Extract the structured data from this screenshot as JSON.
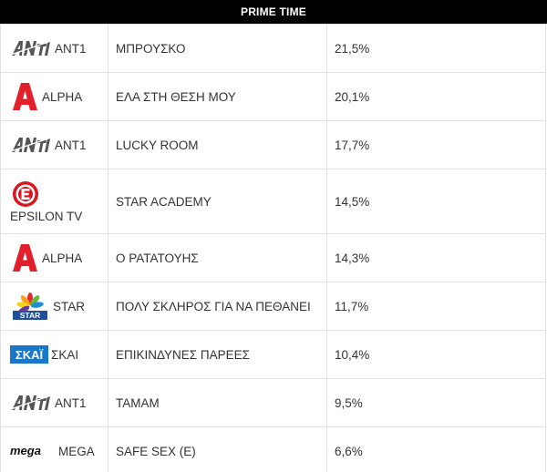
{
  "header": {
    "title": "PRIME TIME"
  },
  "rows": [
    {
      "channel": "ANT1",
      "logo": "ant1-logo",
      "show": "ΜΠΡΟΥΣΚΟ",
      "share": "21,5%"
    },
    {
      "channel": "ALPHA",
      "logo": "alpha-logo",
      "show": "ΕΛΑ ΣΤΗ ΘΕΣΗ ΜΟΥ",
      "share": "20,1%"
    },
    {
      "channel": "ANT1",
      "logo": "ant1-logo",
      "show": "LUCKY ROOM",
      "share": "17,7%"
    },
    {
      "channel": "EPSILON TV",
      "logo": "epsilon-logo",
      "show": "STAR ACADEMY",
      "share": "14,5%"
    },
    {
      "channel": "ALPHA",
      "logo": "alpha-logo",
      "show": "Ο ΡΑΤΑΤΟΥΗΣ",
      "share": "14,3%"
    },
    {
      "channel": "STAR",
      "logo": "star-logo",
      "show": "ΠΟΛΥ ΣΚΛΗΡΟΣ ΓΙΑ ΝΑ ΠΕΘΑΝΕΙ",
      "share": "11,7%"
    },
    {
      "channel": "ΣΚΑΙ",
      "logo": "skai-logo",
      "show": "ΕΠΙΚΙΝΔΥΝΕΣ ΠΑΡΕΕΣ",
      "share": "10,4%"
    },
    {
      "channel": "ANT1",
      "logo": "ant1-logo",
      "show": "ΤΑΜΑΜ",
      "share": "9,5%"
    },
    {
      "channel": "MEGA",
      "logo": "mega-logo",
      "show": "SAFE SEX (E)",
      "share": "6,6%"
    }
  ]
}
